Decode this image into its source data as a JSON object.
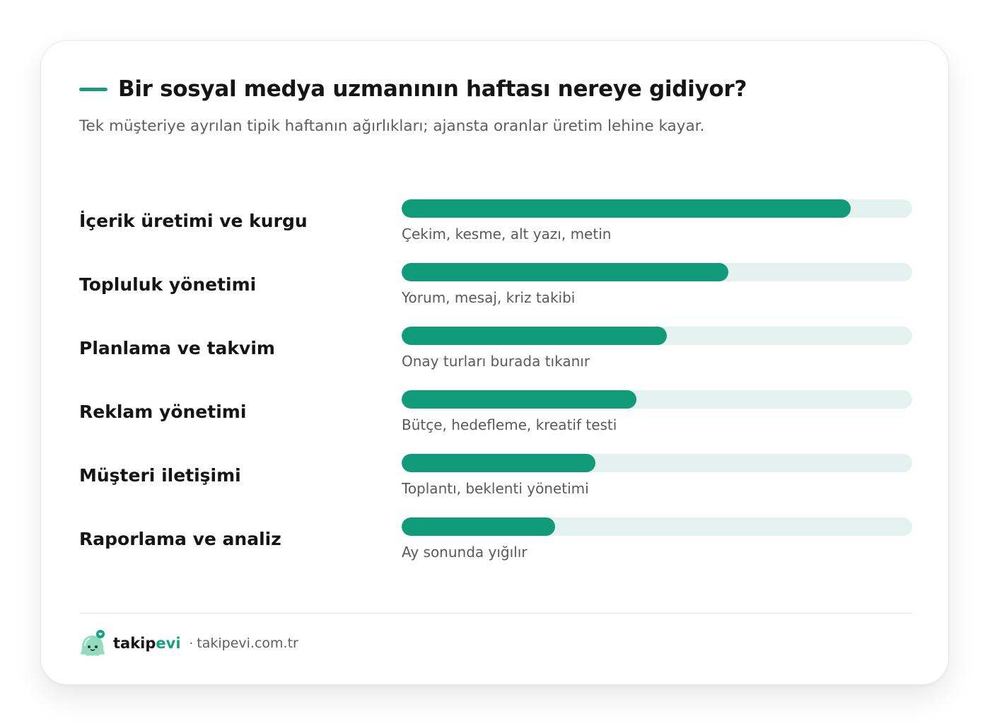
{
  "header": {
    "title": "Bir sosyal medya uzmanının haftası nereye gidiyor?",
    "subtitle": "Tek müşteriye ayrılan tipik haftanın ağırlıkları; ajansta oranlar üretim lehine kayar."
  },
  "chart_data": {
    "type": "bar",
    "orientation": "horizontal",
    "title": "Bir sosyal medya uzmanının haftası nereye gidiyor?",
    "subtitle": "Tek müşteriye ayrılan tipik haftanın ağırlıkları; ajansta oranlar üretim lehine kayar.",
    "categories": [
      "İçerik üretimi ve kurgu",
      "Topluluk yönetimi",
      "Planlama ve takvim",
      "Reklam yönetimi",
      "Müşteri iletişimi",
      "Raporlama ve analiz"
    ],
    "notes": [
      "Çekim, kesme, alt yazı, metin",
      "Yorum, mesaj, kriz takibi",
      "Onay turları burada tıkanır",
      "Bütçe, hedefleme, kreatif testi",
      "Toplantı, beklenti yönetimi",
      "Ay sonunda yığılır"
    ],
    "values": [
      0.88,
      0.64,
      0.52,
      0.46,
      0.38,
      0.3
    ],
    "value_scale": "fraction of full bar",
    "grid": false,
    "colors": {
      "bar": "#129b79",
      "track": "#e3f2ee"
    }
  },
  "footer": {
    "brand_main": "takip",
    "brand_accent": "evi",
    "separator": "·",
    "site": "takipevi.com.tr",
    "logo_icon": "ghost-mascot-icon"
  }
}
